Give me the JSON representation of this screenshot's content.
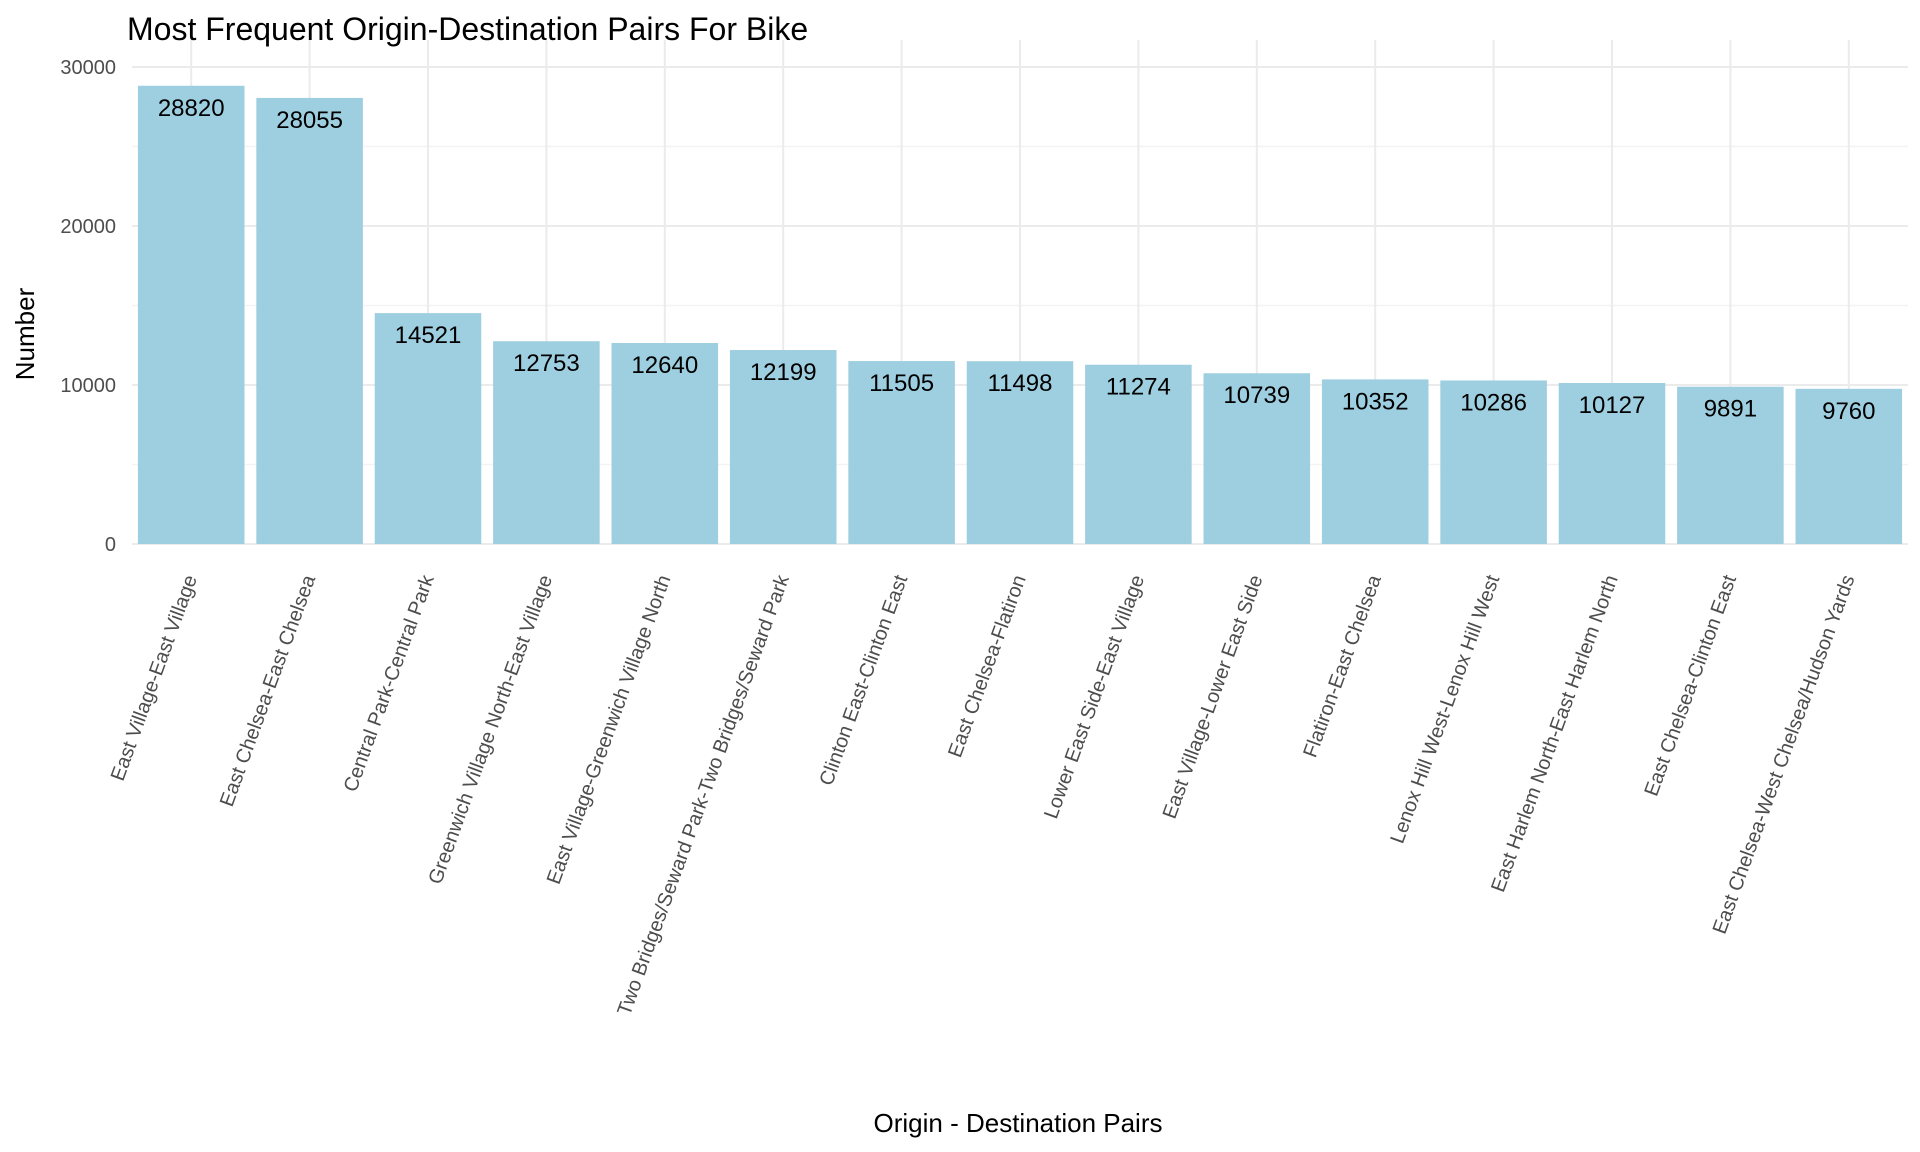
{
  "chart_data": {
    "type": "bar",
    "title": "Most Frequent Origin-Destination Pairs For Bike",
    "xlabel": "Origin - Destination Pairs",
    "ylabel": "Number",
    "ylim": [
      0,
      30000
    ],
    "yticks": [
      "0",
      "10000",
      "20000",
      "30000"
    ],
    "grid": true,
    "bar_color": "#9ecfe0",
    "categories": [
      "East Village-East Village",
      "East Chelsea-East Chelsea",
      "Central Park-Central Park",
      "Greenwich Village North-East Village",
      "East Village-Greenwich Village North",
      "Two Bridges/Seward Park-Two Bridges/Seward Park",
      "Clinton East-Clinton East",
      "East Chelsea-Flatiron",
      "Lower East Side-East Village",
      "East Village-Lower East Side",
      "Flatiron-East Chelsea",
      "Lenox Hill West-Lenox Hill West",
      "East Harlem North-East Harlem North",
      "East Chelsea-Clinton East",
      "East Chelsea-West Chelsea/Hudson Yards"
    ],
    "values": [
      28820,
      28055,
      14521,
      12753,
      12640,
      12199,
      11505,
      11498,
      11274,
      10739,
      10352,
      10286,
      10127,
      9891,
      9760
    ],
    "data_labels": [
      "28820",
      "28055",
      "14521",
      "12753",
      "12640",
      "12199",
      "11505",
      "11498",
      "11274",
      "10739",
      "10352",
      "10286",
      "10127",
      "9891",
      "9760"
    ]
  }
}
